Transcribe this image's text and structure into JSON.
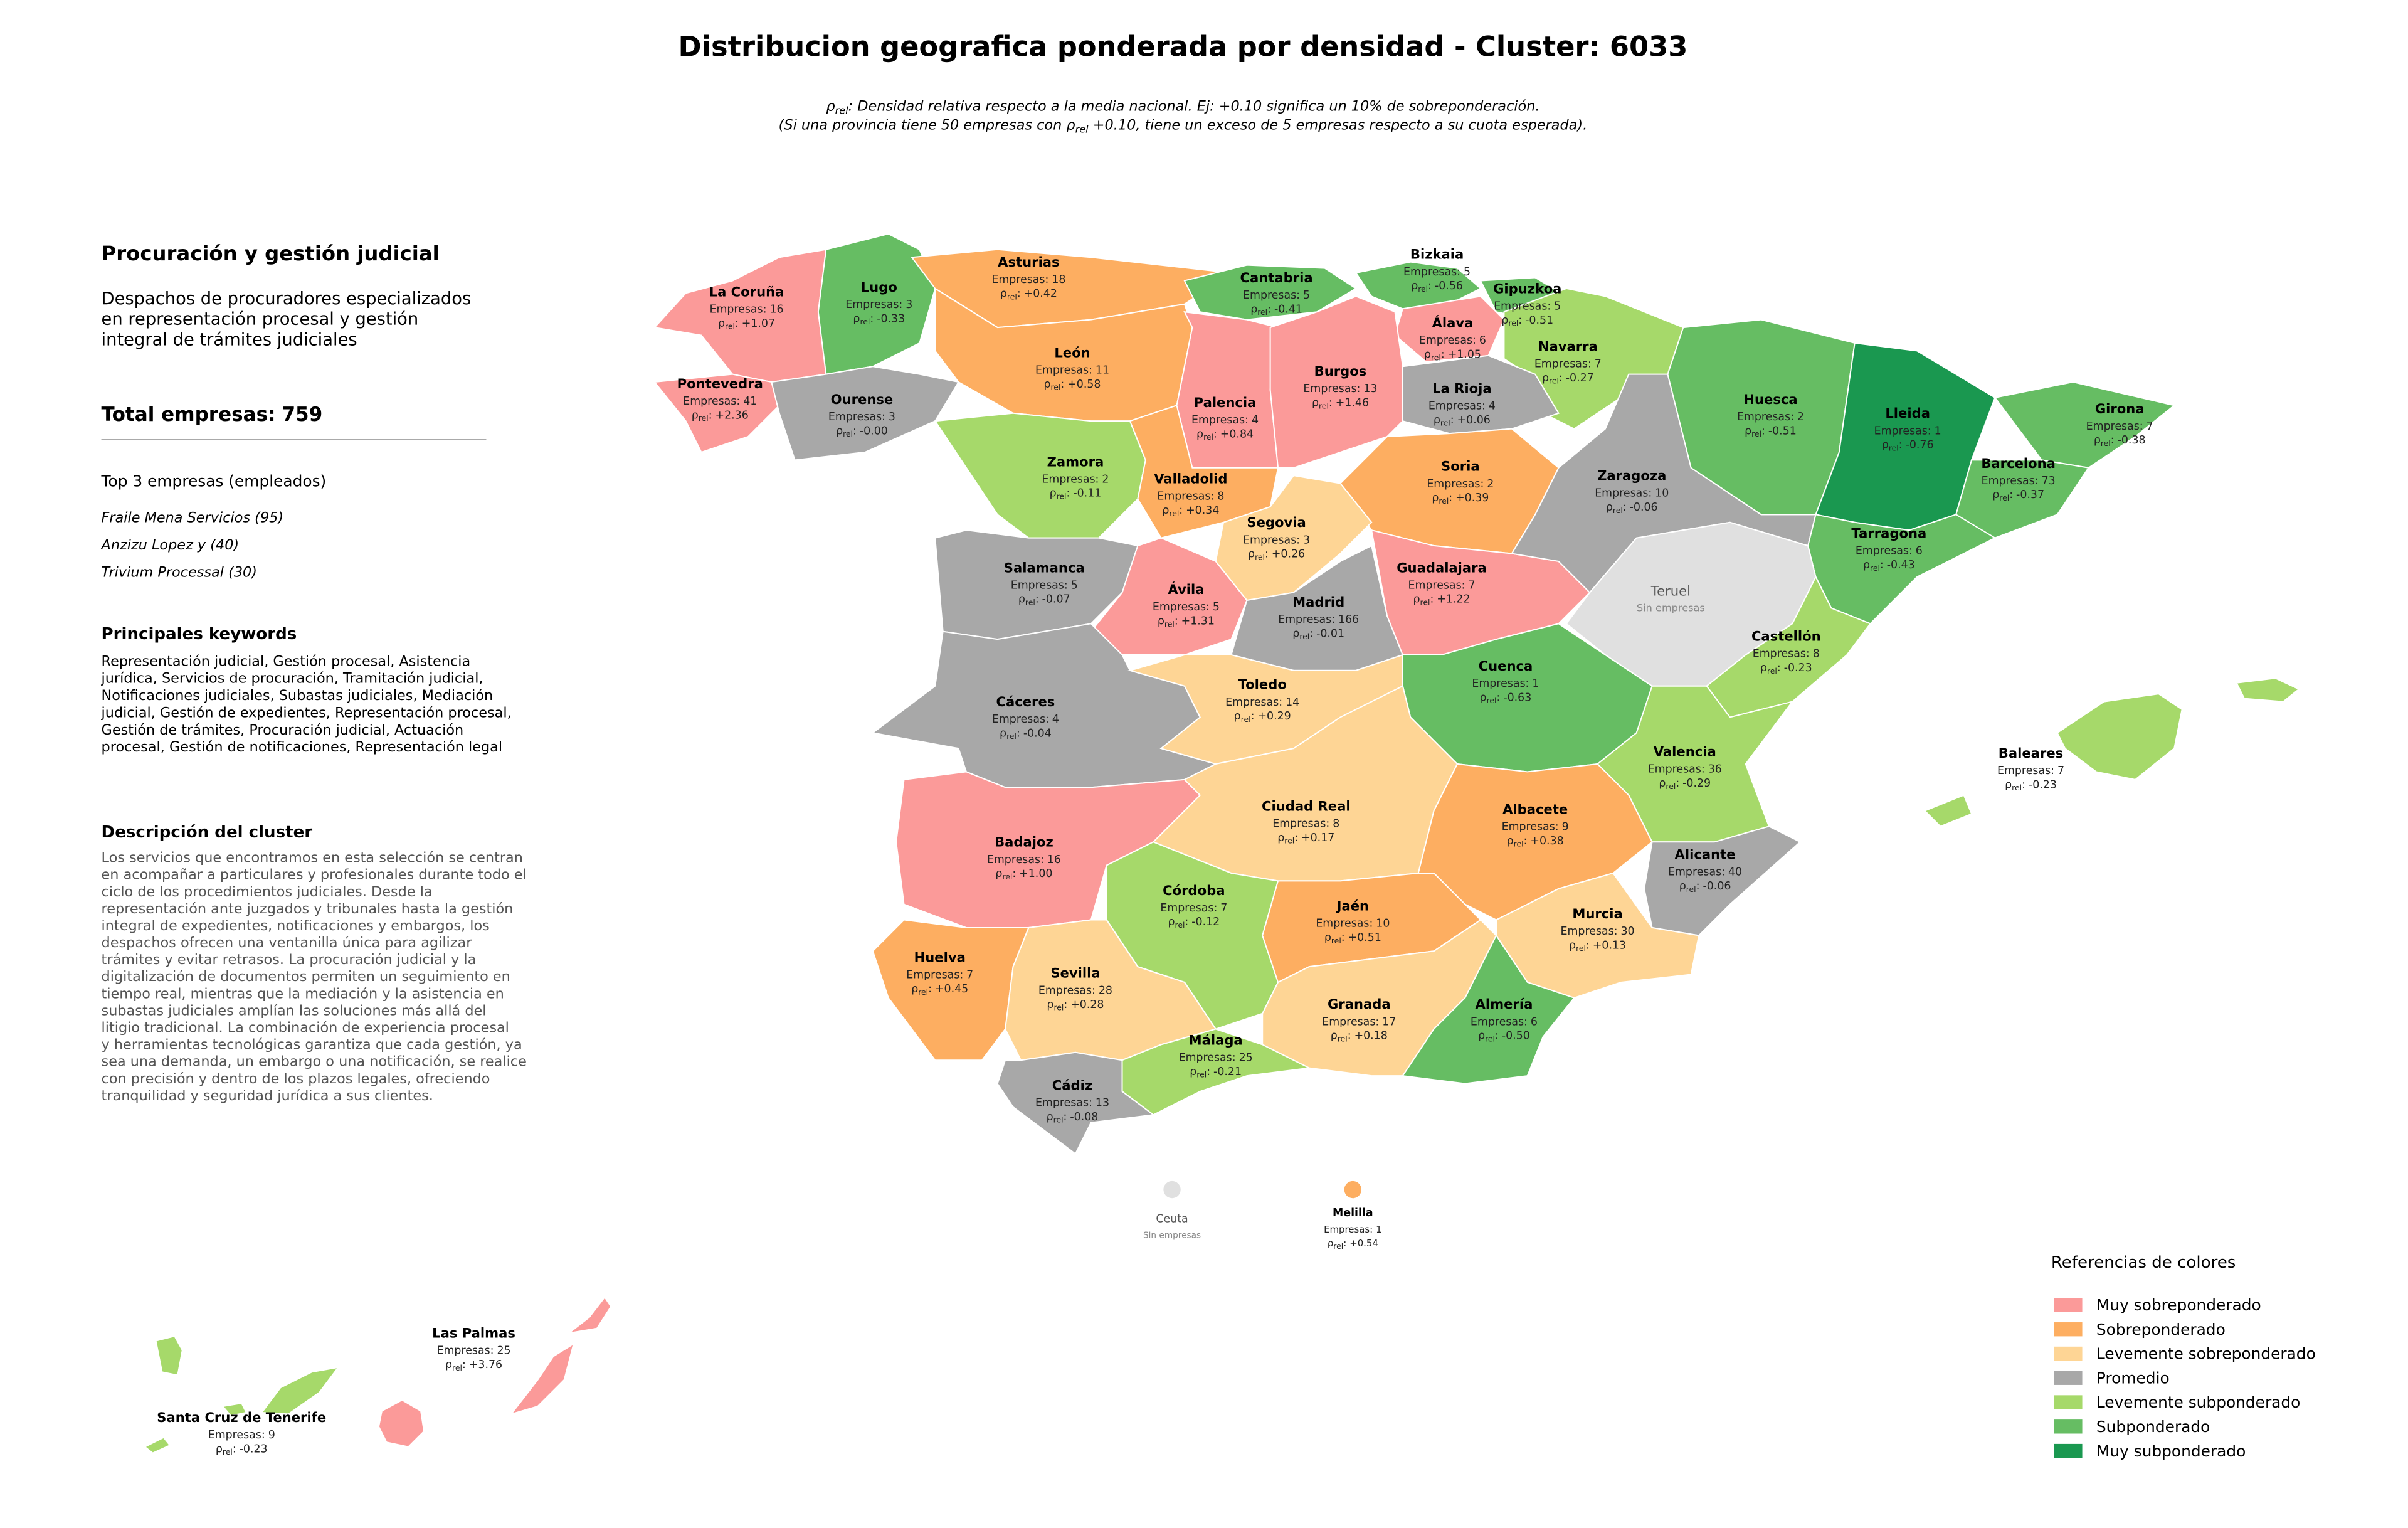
{
  "title": "Distribucion geografica ponderada por densidad - Cluster: 6033",
  "subtitle": {
    "rho_symbol": "ρ",
    "rho_sub": "rel",
    "line1_after": ": Densidad relativa respecto a la media nacional. Ej: +0.10 significa un 10% de sobreponderación.",
    "line2_before": "(Si una provincia tiene 50 empresas con ",
    "line2_after": " +0.10, tiene un exceso de 5 empresas respecto a su cuota esperada)."
  },
  "sidebar": {
    "heading": "Procuración y gestión judicial",
    "description_lines": [
      "Despachos de procuradores especializados",
      "en representación procesal y gestión",
      "integral de trámites judiciales"
    ],
    "total_label": "Total empresas:",
    "total": 759,
    "top_heading": "Top 3 empresas (empleados)",
    "top_companies": [
      "Fraile Mena Servicios (95)",
      "Anzizu Lopez y (40)",
      "Trivium Processal (30)"
    ],
    "keywords_heading": "Principales keywords",
    "keywords_lines": [
      "Representación judicial, Gestión procesal, Asistencia",
      "jurídica, Servicios de procuración, Tramitación judicial,",
      "Notificaciones judiciales, Subastas judiciales, Mediación",
      "judicial, Gestión de expedientes, Representación procesal,",
      "Gestión de trámites, Procuración judicial, Actuación",
      "procesal, Gestión de notificaciones, Representación legal"
    ],
    "cluster_heading": "Descripción del cluster",
    "cluster_lines": [
      "Los servicios que encontramos en esta selección se centran",
      "en acompañar a particulares y profesionales durante todo el",
      "ciclo de los procedimientos judiciales. Desde la",
      "representación ante juzgados y tribunales hasta la gestión",
      "integral de expedientes, notificaciones y embargos, los",
      "despachos ofrecen una ventanilla única para agilizar",
      "trámites y evitar retrasos. La procuración judicial y la",
      "digitalización de documentos permiten un seguimiento en",
      "tiempo real, mientras que la mediación y la asistencia en",
      "subastas judiciales amplían las soluciones más allá del",
      "litigio tradicional. La combinación de experiencia procesal",
      "y herramientas tecnológicas garantiza que cada gestión, ya",
      "sea una demanda, un embargo o una notificación, se realice",
      "con precisión y dentro de los plazos legales, ofreciendo",
      "tranquilidad y seguridad jurídica a sus clientes."
    ]
  },
  "map": {
    "empresas_label": "Empresas:",
    "rho_symbol": "ρ",
    "rho_sub": "rel",
    "rho_suffix": ":",
    "no_companies": "Sin empresas",
    "no_data_color": "#e0e0e0",
    "provinces": [
      {
        "name": "La Coruña",
        "empresas": 16,
        "rho": "+1.07",
        "level": 0
      },
      {
        "name": "Lugo",
        "empresas": 3,
        "rho": "-0.33",
        "level": 5
      },
      {
        "name": "Asturias",
        "empresas": 18,
        "rho": "+0.42",
        "level": 1
      },
      {
        "name": "Cantabria",
        "empresas": 5,
        "rho": "-0.41",
        "level": 5
      },
      {
        "name": "Bizkaia",
        "empresas": 5,
        "rho": "-0.56",
        "level": 5
      },
      {
        "name": "Gipuzkoa",
        "empresas": 5,
        "rho": "-0.51",
        "level": 5
      },
      {
        "name": "Álava",
        "empresas": 6,
        "rho": "+1.05",
        "level": 0
      },
      {
        "name": "Navarra",
        "empresas": 7,
        "rho": "-0.27",
        "level": 4
      },
      {
        "name": "La Rioja",
        "empresas": 4,
        "rho": "+0.06",
        "level": 3
      },
      {
        "name": "Pontevedra",
        "empresas": 41,
        "rho": "+2.36",
        "level": 0
      },
      {
        "name": "Ourense",
        "empresas": 3,
        "rho": "-0.00",
        "level": 3
      },
      {
        "name": "León",
        "empresas": 11,
        "rho": "+0.58",
        "level": 1
      },
      {
        "name": "Palencia",
        "empresas": 4,
        "rho": "+0.84",
        "level": 0
      },
      {
        "name": "Burgos",
        "empresas": 13,
        "rho": "+1.46",
        "level": 0
      },
      {
        "name": "Zamora",
        "empresas": 2,
        "rho": "-0.11",
        "level": 4
      },
      {
        "name": "Valladolid",
        "empresas": 8,
        "rho": "+0.34",
        "level": 1
      },
      {
        "name": "Soria",
        "empresas": 2,
        "rho": "+0.39",
        "level": 1
      },
      {
        "name": "Segovia",
        "empresas": 3,
        "rho": "+0.26",
        "level": 2
      },
      {
        "name": "Salamanca",
        "empresas": 5,
        "rho": "-0.07",
        "level": 3
      },
      {
        "name": "Ávila",
        "empresas": 5,
        "rho": "+1.31",
        "level": 0
      },
      {
        "name": "Madrid",
        "empresas": 166,
        "rho": "-0.01",
        "level": 3
      },
      {
        "name": "Guadalajara",
        "empresas": 7,
        "rho": "+1.22",
        "level": 0
      },
      {
        "name": "Zaragoza",
        "empresas": 10,
        "rho": "-0.06",
        "level": 3
      },
      {
        "name": "Huesca",
        "empresas": 2,
        "rho": "-0.51",
        "level": 5
      },
      {
        "name": "Lleida",
        "empresas": 1,
        "rho": "-0.76",
        "level": 6
      },
      {
        "name": "Girona",
        "empresas": 7,
        "rho": "-0.38",
        "level": 5
      },
      {
        "name": "Barcelona",
        "empresas": 73,
        "rho": "-0.37",
        "level": 5
      },
      {
        "name": "Tarragona",
        "empresas": 6,
        "rho": "-0.43",
        "level": 5
      },
      {
        "name": "Teruel",
        "empresas": null,
        "rho": null,
        "level": null
      },
      {
        "name": "Castellón",
        "empresas": 8,
        "rho": "-0.23",
        "level": 4
      },
      {
        "name": "Cáceres",
        "empresas": 4,
        "rho": "-0.04",
        "level": 3
      },
      {
        "name": "Toledo",
        "empresas": 14,
        "rho": "+0.29",
        "level": 2
      },
      {
        "name": "Cuenca",
        "empresas": 1,
        "rho": "-0.63",
        "level": 5
      },
      {
        "name": "Valencia",
        "empresas": 36,
        "rho": "-0.29",
        "level": 4
      },
      {
        "name": "Badajoz",
        "empresas": 16,
        "rho": "+1.00",
        "level": 0
      },
      {
        "name": "Ciudad Real",
        "empresas": 8,
        "rho": "+0.17",
        "level": 2
      },
      {
        "name": "Albacete",
        "empresas": 9,
        "rho": "+0.38",
        "level": 1
      },
      {
        "name": "Alicante",
        "empresas": 40,
        "rho": "-0.06",
        "level": 3
      },
      {
        "name": "Murcia",
        "empresas": 30,
        "rho": "+0.13",
        "level": 2
      },
      {
        "name": "Córdoba",
        "empresas": 7,
        "rho": "-0.12",
        "level": 4
      },
      {
        "name": "Jaén",
        "empresas": 10,
        "rho": "+0.51",
        "level": 1
      },
      {
        "name": "Huelva",
        "empresas": 7,
        "rho": "+0.45",
        "level": 1
      },
      {
        "name": "Sevilla",
        "empresas": 28,
        "rho": "+0.28",
        "level": 2
      },
      {
        "name": "Granada",
        "empresas": 17,
        "rho": "+0.18",
        "level": 2
      },
      {
        "name": "Almería",
        "empresas": 6,
        "rho": "-0.50",
        "level": 5
      },
      {
        "name": "Málaga",
        "empresas": 25,
        "rho": "-0.21",
        "level": 4
      },
      {
        "name": "Cádiz",
        "empresas": 13,
        "rho": "-0.08",
        "level": 3
      },
      {
        "name": "Baleares",
        "empresas": 7,
        "rho": "-0.23",
        "level": 4
      },
      {
        "name": "Las Palmas",
        "empresas": 25,
        "rho": "+3.76",
        "level": 0
      },
      {
        "name": "Santa Cruz de Tenerife",
        "empresas": 9,
        "rho": "-0.23",
        "level": 4
      },
      {
        "name": "Ceuta",
        "empresas": null,
        "rho": null,
        "level": null
      },
      {
        "name": "Melilla",
        "empresas": 1,
        "rho": "+0.54",
        "level": 1
      }
    ]
  },
  "legend": {
    "title": "Referencias de colores",
    "items": [
      {
        "label": "Muy sobreponderado",
        "color": "#fb9a99"
      },
      {
        "label": "Sobreponderado",
        "color": "#fdae61"
      },
      {
        "label": "Levemente sobreponderado",
        "color": "#fed595"
      },
      {
        "label": "Promedio",
        "color": "#a8a8a8"
      },
      {
        "label": "Levemente subponderado",
        "color": "#a6d96a"
      },
      {
        "label": "Subponderado",
        "color": "#66bd63"
      },
      {
        "label": "Muy subponderado",
        "color": "#1a9850"
      }
    ]
  }
}
